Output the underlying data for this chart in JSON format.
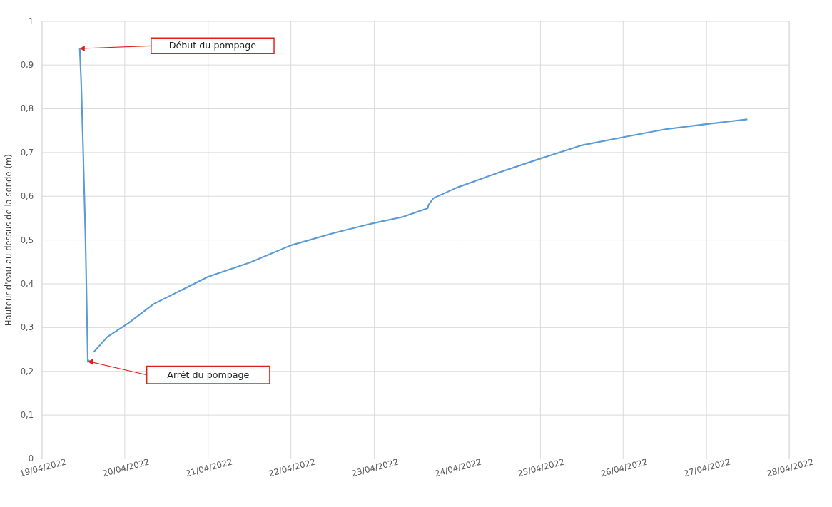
{
  "chart_data": {
    "type": "line",
    "ylabel": "Hauteur d'eau au dessus de la sonde (m)",
    "x": [
      "2022-04-19T11:00",
      "2022-04-19T11:25",
      "2022-04-19T12:00",
      "2022-04-19T12:40",
      "2022-04-19T13:20",
      "2022-04-19T13:45",
      null,
      "2022-04-19T15:00",
      "2022-04-19T19:00",
      "2022-04-20T01:00",
      "2022-04-20T08:20",
      "2022-04-21T00:00",
      "2022-04-21T12:15",
      "2022-04-22T00:00",
      "2022-04-22T12:15",
      "2022-04-23T00:00",
      "2022-04-23T08:20",
      "2022-04-23T15:35",
      "2022-04-23T15:50",
      "2022-04-23T17:15",
      "2022-04-24T00:00",
      "2022-04-24T12:15",
      "2022-04-25T00:00",
      "2022-04-25T12:15",
      "2022-04-26T00:00",
      "2022-04-26T12:00",
      "2022-04-27T00:00",
      "2022-04-27T12:00"
    ],
    "series": [
      {
        "color": "#5b9bd5",
        "values": [
          0.937,
          0.86,
          0.7,
          0.5,
          0.221,
          0.225,
          null,
          0.243,
          0.278,
          0.309,
          0.353,
          0.415,
          0.448,
          0.487,
          0.515,
          0.538,
          0.552,
          0.572,
          0.58,
          0.595,
          0.619,
          0.654,
          0.685,
          0.716,
          0.734,
          0.752,
          0.764,
          0.775
        ]
      }
    ],
    "xlim": [
      "2022-04-19",
      "2022-04-28"
    ],
    "xticks": [
      {
        "value": "2022-04-19",
        "label": "19/04/2022"
      },
      {
        "value": "2022-04-20",
        "label": "20/04/2022"
      },
      {
        "value": "2022-04-21",
        "label": "21/04/2022"
      },
      {
        "value": "2022-04-22",
        "label": "22/04/2022"
      },
      {
        "value": "2022-04-23",
        "label": "23/04/2022"
      },
      {
        "value": "2022-04-24",
        "label": "24/04/2022"
      },
      {
        "value": "2022-04-25",
        "label": "25/04/2022"
      },
      {
        "value": "2022-04-26",
        "label": "26/04/2022"
      },
      {
        "value": "2022-04-27",
        "label": "27/04/2022"
      },
      {
        "value": "2022-04-28",
        "label": "28/04/2022"
      }
    ],
    "ylim": [
      0,
      1
    ],
    "yticks": [
      0,
      {
        "value": 0.1,
        "label": "0,1"
      },
      {
        "value": 0.2,
        "label": "0,2"
      },
      {
        "value": 0.3,
        "label": "0,3"
      },
      {
        "value": 0.4,
        "label": "0,4"
      },
      {
        "value": 0.5,
        "label": "0,5"
      },
      {
        "value": 0.6,
        "label": "0,6"
      },
      {
        "value": 0.7,
        "label": "0,7"
      },
      {
        "value": 0.8,
        "label": "0,8"
      },
      {
        "value": 0.9,
        "label": "0,9"
      },
      1
    ],
    "grid": true,
    "marker": "none",
    "line_style": "solid",
    "annotations": [
      "Début du pompage",
      "Arrêt du pompage"
    ]
  }
}
